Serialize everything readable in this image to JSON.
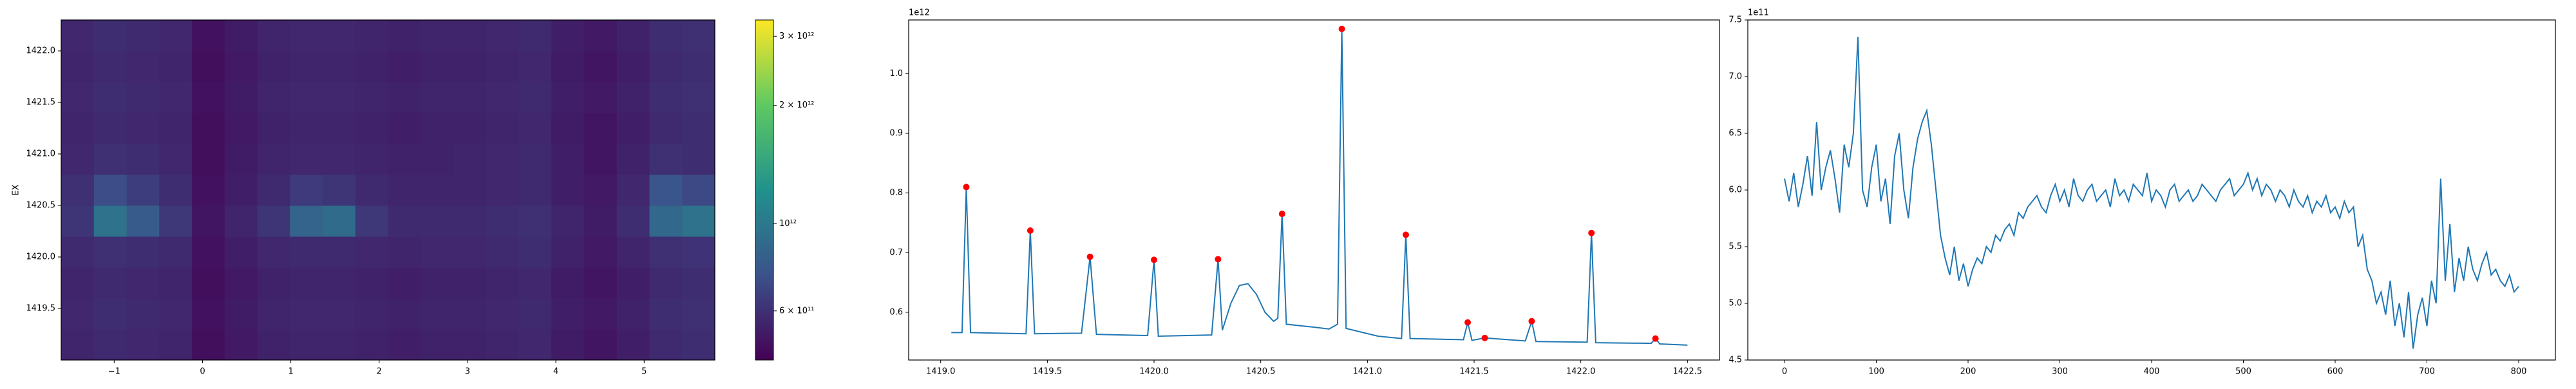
{
  "chart_data": [
    {
      "type": "heatmap",
      "ylabel": "EX",
      "colormap": "viridis",
      "log_color": true,
      "x_edges": [
        -1.6,
        -1.23,
        -0.86,
        -0.49,
        -0.12,
        0.25,
        0.62,
        0.99,
        1.36,
        1.73,
        2.1,
        2.47,
        2.84,
        3.21,
        3.58,
        3.95,
        4.32,
        4.69,
        5.06,
        5.43,
        5.8
      ],
      "y_edges": [
        1419.0,
        1419.3,
        1419.6,
        1419.9,
        1420.2,
        1420.5,
        1420.8,
        1421.1,
        1421.4,
        1421.7,
        1422.0,
        1422.3
      ],
      "z": [
        [
          560000000000.0,
          580000000000.0,
          570000000000.0,
          560000000000.0,
          490000000000.0,
          520000000000.0,
          550000000000.0,
          560000000000.0,
          560000000000.0,
          550000000000.0,
          540000000000.0,
          550000000000.0,
          550000000000.0,
          560000000000.0,
          570000000000.0,
          530000000000.0,
          510000000000.0,
          540000000000.0,
          580000000000.0,
          590000000000.0
        ],
        [
          570000000000.0,
          590000000000.0,
          580000000000.0,
          570000000000.0,
          500000000000.0,
          530000000000.0,
          560000000000.0,
          570000000000.0,
          570000000000.0,
          560000000000.0,
          550000000000.0,
          560000000000.0,
          560000000000.0,
          570000000000.0,
          580000000000.0,
          540000000000.0,
          520000000000.0,
          550000000000.0,
          590000000000.0,
          600000000000.0
        ],
        [
          560000000000.0,
          580000000000.0,
          570000000000.0,
          560000000000.0,
          490000000000.0,
          520000000000.0,
          550000000000.0,
          560000000000.0,
          560000000000.0,
          550000000000.0,
          540000000000.0,
          550000000000.0,
          550000000000.0,
          560000000000.0,
          570000000000.0,
          530000000000.0,
          510000000000.0,
          540000000000.0,
          580000000000.0,
          590000000000.0
        ],
        [
          580000000000.0,
          600000000000.0,
          590000000000.0,
          580000000000.0,
          500000000000.0,
          540000000000.0,
          570000000000.0,
          580000000000.0,
          580000000000.0,
          570000000000.0,
          560000000000.0,
          570000000000.0,
          570000000000.0,
          580000000000.0,
          590000000000.0,
          550000000000.0,
          520000000000.0,
          560000000000.0,
          600000000000.0,
          610000000000.0
        ],
        [
          620000000000.0,
          950000000000.0,
          800000000000.0,
          630000000000.0,
          510000000000.0,
          560000000000.0,
          620000000000.0,
          850000000000.0,
          900000000000.0,
          630000000000.0,
          580000000000.0,
          580000000000.0,
          580000000000.0,
          590000000000.0,
          600000000000.0,
          560000000000.0,
          530000000000.0,
          590000000000.0,
          880000000000.0,
          950000000000.0
        ],
        [
          600000000000.0,
          720000000000.0,
          650000000000.0,
          590000000000.0,
          500000000000.0,
          540000000000.0,
          580000000000.0,
          640000000000.0,
          620000000000.0,
          580000000000.0,
          560000000000.0,
          560000000000.0,
          560000000000.0,
          570000000000.0,
          580000000000.0,
          540000000000.0,
          520000000000.0,
          570000000000.0,
          760000000000.0,
          700000000000.0
        ],
        [
          570000000000.0,
          600000000000.0,
          590000000000.0,
          570000000000.0,
          490000000000.0,
          530000000000.0,
          560000000000.0,
          570000000000.0,
          570000000000.0,
          560000000000.0,
          550000000000.0,
          550000000000.0,
          560000000000.0,
          570000000000.0,
          580000000000.0,
          540000000000.0,
          510000000000.0,
          550000000000.0,
          600000000000.0,
          590000000000.0
        ],
        [
          560000000000.0,
          580000000000.0,
          570000000000.0,
          560000000000.0,
          490000000000.0,
          520000000000.0,
          550000000000.0,
          560000000000.0,
          560000000000.0,
          550000000000.0,
          540000000000.0,
          550000000000.0,
          550000000000.0,
          560000000000.0,
          570000000000.0,
          530000000000.0,
          510000000000.0,
          540000000000.0,
          580000000000.0,
          590000000000.0
        ],
        [
          570000000000.0,
          590000000000.0,
          580000000000.0,
          570000000000.0,
          500000000000.0,
          530000000000.0,
          560000000000.0,
          570000000000.0,
          570000000000.0,
          560000000000.0,
          550000000000.0,
          560000000000.0,
          560000000000.0,
          570000000000.0,
          580000000000.0,
          540000000000.0,
          520000000000.0,
          550000000000.0,
          590000000000.0,
          600000000000.0
        ],
        [
          560000000000.0,
          580000000000.0,
          570000000000.0,
          560000000000.0,
          490000000000.0,
          520000000000.0,
          550000000000.0,
          560000000000.0,
          560000000000.0,
          550000000000.0,
          540000000000.0,
          550000000000.0,
          550000000000.0,
          560000000000.0,
          570000000000.0,
          530000000000.0,
          510000000000.0,
          540000000000.0,
          580000000000.0,
          590000000000.0
        ],
        [
          570000000000.0,
          590000000000.0,
          580000000000.0,
          570000000000.0,
          500000000000.0,
          530000000000.0,
          560000000000.0,
          570000000000.0,
          570000000000.0,
          560000000000.0,
          550000000000.0,
          560000000000.0,
          560000000000.0,
          570000000000.0,
          580000000000.0,
          540000000000.0,
          520000000000.0,
          550000000000.0,
          590000000000.0,
          600000000000.0
        ]
      ],
      "xlim": [
        -1.6,
        5.8
      ],
      "ylim": [
        1419.0,
        1422.3
      ],
      "xticks": [
        {
          "value": -1,
          "label": "−1"
        },
        0,
        1,
        2,
        3,
        4,
        5
      ],
      "yticks": [
        1419.5,
        {
          "value": 1420,
          "label": "1420.0"
        },
        1420.5,
        {
          "value": 1421,
          "label": "1421.0"
        },
        1421.5,
        {
          "value": 1422,
          "label": "1422.0"
        }
      ],
      "clim": [
        450000000000.0,
        3300000000000.0
      ],
      "cticks": [
        {
          "value": 600000000000.0,
          "label": "6 × 10¹¹"
        },
        {
          "value": 1000000000000.0,
          "label": "10¹²"
        },
        {
          "value": 2000000000000.0,
          "label": "2 × 10¹²"
        },
        {
          "value": 3000000000000.0,
          "label": "3 × 10¹²"
        }
      ]
    },
    {
      "type": "line",
      "offset_text": "1e12",
      "series": [
        {
          "style": "line",
          "color": "#1f77b4",
          "x": [
            1419.05,
            1419.1,
            1419.12,
            1419.14,
            1419.4,
            1419.42,
            1419.44,
            1419.66,
            1419.7,
            1419.73,
            1419.97,
            1420.0,
            1420.02,
            1420.27,
            1420.3,
            1420.32,
            1420.36,
            1420.4,
            1420.44,
            1420.48,
            1420.52,
            1420.56,
            1420.58,
            1420.6,
            1420.62,
            1420.75,
            1420.82,
            1420.86,
            1420.88,
            1420.9,
            1421.05,
            1421.16,
            1421.18,
            1421.2,
            1421.45,
            1421.47,
            1421.49,
            1421.55,
            1421.74,
            1421.77,
            1421.79,
            1422.03,
            1422.05,
            1422.07,
            1422.33,
            1422.35,
            1422.37,
            1422.5
          ],
          "values": [
            0.566,
            0.566,
            0.81,
            0.566,
            0.564,
            0.737,
            0.564,
            0.565,
            0.693,
            0.563,
            0.561,
            0.688,
            0.56,
            0.562,
            0.689,
            0.57,
            0.615,
            0.645,
            0.648,
            0.63,
            0.6,
            0.585,
            0.59,
            0.765,
            0.58,
            0.575,
            0.572,
            0.58,
            1.075,
            0.573,
            0.56,
            0.556,
            0.73,
            0.556,
            0.554,
            0.583,
            0.553,
            0.557,
            0.552,
            0.585,
            0.551,
            0.55,
            0.733,
            0.549,
            0.548,
            0.556,
            0.547,
            0.545
          ]
        },
        {
          "style": "markers",
          "color": "#ff0000",
          "x": [
            1419.12,
            1419.42,
            1419.7,
            1420.0,
            1420.3,
            1420.6,
            1420.88,
            1421.18,
            1421.47,
            1421.55,
            1421.77,
            1422.05,
            1422.35
          ],
          "values": [
            0.81,
            0.737,
            0.693,
            0.688,
            0.689,
            0.765,
            1.075,
            0.73,
            0.583,
            0.557,
            0.585,
            0.733,
            0.556
          ]
        }
      ],
      "xlim": [
        1418.85,
        1422.65
      ],
      "ylim": [
        0.52,
        1.09
      ],
      "xticks": [
        {
          "value": 1419,
          "label": "1419.0"
        },
        1419.5,
        {
          "value": 1420,
          "label": "1420.0"
        },
        1420.5,
        {
          "value": 1421,
          "label": "1421.0"
        },
        1421.5,
        {
          "value": 1422,
          "label": "1422.0"
        },
        1422.5
      ],
      "yticks": [
        0.6,
        0.7,
        0.8,
        0.9,
        {
          "value": 1,
          "label": "1.0"
        }
      ]
    },
    {
      "type": "line",
      "offset_text": "1e11",
      "series": [
        {
          "style": "line",
          "color": "#1f77b4",
          "x": [
            0,
            5,
            10,
            15,
            20,
            25,
            30,
            35,
            40,
            45,
            50,
            55,
            60,
            65,
            70,
            75,
            80,
            85,
            90,
            95,
            100,
            105,
            110,
            115,
            120,
            125,
            130,
            135,
            140,
            145,
            150,
            155,
            160,
            165,
            170,
            175,
            180,
            185,
            190,
            195,
            200,
            205,
            210,
            215,
            220,
            225,
            230,
            235,
            240,
            245,
            250,
            255,
            260,
            265,
            270,
            275,
            280,
            285,
            290,
            295,
            300,
            305,
            310,
            315,
            320,
            325,
            330,
            335,
            340,
            345,
            350,
            355,
            360,
            365,
            370,
            375,
            380,
            385,
            390,
            395,
            400,
            405,
            410,
            415,
            420,
            425,
            430,
            435,
            440,
            445,
            450,
            455,
            460,
            465,
            470,
            475,
            480,
            485,
            490,
            495,
            500,
            505,
            510,
            515,
            520,
            525,
            530,
            535,
            540,
            545,
            550,
            555,
            560,
            565,
            570,
            575,
            580,
            585,
            590,
            595,
            600,
            605,
            610,
            615,
            620,
            625,
            630,
            635,
            640,
            645,
            650,
            655,
            660,
            665,
            670,
            675,
            680,
            685,
            690,
            695,
            700,
            705,
            710,
            715,
            720,
            725,
            730,
            735,
            740,
            745,
            750,
            755,
            760,
            765,
            770,
            775,
            780,
            785,
            790,
            795,
            800
          ],
          "values": [
            6.1,
            5.9,
            6.15,
            5.85,
            6.05,
            6.3,
            5.95,
            6.6,
            6.0,
            6.2,
            6.35,
            6.1,
            5.8,
            6.4,
            6.2,
            6.5,
            7.35,
            6.0,
            5.85,
            6.2,
            6.4,
            5.9,
            6.1,
            5.7,
            6.3,
            6.5,
            6.0,
            5.75,
            6.2,
            6.45,
            6.6,
            6.7,
            6.4,
            6.0,
            5.6,
            5.4,
            5.25,
            5.5,
            5.2,
            5.35,
            5.15,
            5.3,
            5.4,
            5.35,
            5.5,
            5.45,
            5.6,
            5.55,
            5.65,
            5.7,
            5.6,
            5.8,
            5.75,
            5.85,
            5.9,
            5.95,
            5.85,
            5.8,
            5.95,
            6.05,
            5.9,
            6.0,
            5.85,
            6.1,
            5.95,
            5.9,
            6.0,
            6.05,
            5.9,
            5.95,
            6.0,
            5.85,
            6.1,
            5.95,
            6.0,
            5.9,
            6.05,
            6.0,
            5.95,
            6.15,
            5.9,
            6.0,
            5.95,
            5.85,
            6.0,
            6.05,
            5.9,
            5.95,
            6.0,
            5.9,
            5.95,
            6.05,
            6.0,
            5.95,
            5.9,
            6.0,
            6.05,
            6.1,
            5.95,
            6.0,
            6.05,
            6.15,
            6.0,
            6.1,
            5.95,
            6.05,
            6.0,
            5.9,
            6.0,
            5.95,
            5.85,
            6.0,
            5.9,
            5.85,
            5.95,
            5.8,
            5.9,
            5.85,
            5.95,
            5.8,
            5.85,
            5.75,
            5.9,
            5.8,
            5.85,
            5.5,
            5.6,
            5.3,
            5.2,
            5.0,
            5.1,
            4.9,
            5.2,
            4.8,
            5.0,
            4.7,
            5.1,
            4.6,
            4.9,
            5.05,
            4.8,
            5.2,
            5.0,
            6.1,
            5.2,
            5.7,
            5.1,
            5.4,
            5.2,
            5.5,
            5.3,
            5.2,
            5.35,
            5.45,
            5.25,
            5.3,
            5.2,
            5.15,
            5.25,
            5.1,
            5.15
          ]
        }
      ],
      "xlim": [
        -40,
        840
      ],
      "ylim": [
        4.5,
        7.5
      ],
      "xticks": [
        0,
        100,
        200,
        300,
        400,
        500,
        600,
        700,
        800
      ],
      "yticks": [
        4.5,
        {
          "value": 5,
          "label": "5.0"
        },
        5.5,
        {
          "value": 6,
          "label": "6.0"
        },
        6.5,
        {
          "value": 7,
          "label": "7.0"
        },
        7.5
      ]
    }
  ]
}
